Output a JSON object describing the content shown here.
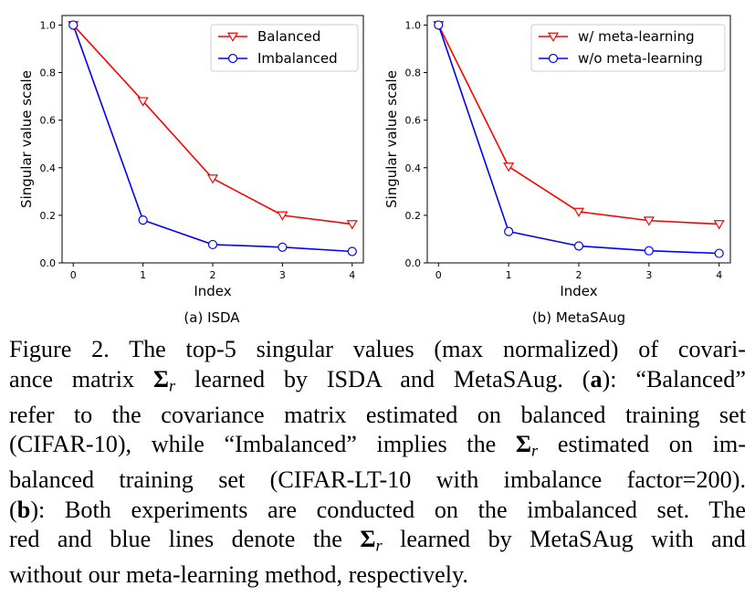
{
  "chart_data": [
    {
      "type": "line",
      "subcaption": "(a) ISDA",
      "x": [
        0,
        1,
        2,
        3,
        4
      ],
      "xlabel": "Index",
      "ylabel": "Singular value scale",
      "xticks": [
        "0",
        "1",
        "2",
        "3",
        "4"
      ],
      "yticks": [
        "0.0",
        "0.2",
        "0.4",
        "0.6",
        "0.8",
        "1.0"
      ],
      "ylim": [
        0,
        1.04
      ],
      "grid": false,
      "legend_position": "top-right",
      "series": [
        {
          "name": "Balanced",
          "color": "#ff0000",
          "marker": "triangle-down",
          "values": [
            1.0,
            0.68,
            0.355,
            0.2,
            0.163
          ]
        },
        {
          "name": "Imbalanced",
          "color": "#0000ff",
          "marker": "circle",
          "values": [
            1.0,
            0.18,
            0.077,
            0.066,
            0.048
          ]
        }
      ]
    },
    {
      "type": "line",
      "subcaption": "(b) MetaSAug",
      "x": [
        0,
        1,
        2,
        3,
        4
      ],
      "xlabel": "Index",
      "ylabel": "Singular value scale",
      "xticks": [
        "0",
        "1",
        "2",
        "3",
        "4"
      ],
      "yticks": [
        "0.0",
        "0.2",
        "0.4",
        "0.6",
        "0.8",
        "1.0"
      ],
      "ylim": [
        0,
        1.04
      ],
      "grid": false,
      "legend_position": "top-right",
      "series": [
        {
          "name": "w/ meta-learning",
          "color": "#ff0000",
          "marker": "triangle-down",
          "values": [
            1.0,
            0.405,
            0.215,
            0.178,
            0.163
          ]
        },
        {
          "name": "w/o meta-learning",
          "color": "#0000ff",
          "marker": "circle",
          "values": [
            1.0,
            0.132,
            0.071,
            0.051,
            0.04
          ]
        }
      ]
    }
  ],
  "caption": {
    "lines": [
      [
        {
          "t": "Figure 2. The top-5 singular values (max normalized) of covari-"
        }
      ],
      [
        {
          "t": "ance matrix "
        },
        {
          "t": "Σ",
          "k": "sigma"
        },
        {
          "t": "r",
          "k": "sub"
        },
        {
          "t": " learned by ISDA and MetaSAug. ("
        },
        {
          "t": "a",
          "k": "b"
        },
        {
          "t": "): “Balanced”"
        }
      ],
      [
        {
          "t": "refer to the covariance matrix estimated on balanced training set"
        }
      ],
      [
        {
          "t": "(CIFAR-10), while “Imbalanced” implies the "
        },
        {
          "t": "Σ",
          "k": "sigma"
        },
        {
          "t": "r",
          "k": "sub"
        },
        {
          "t": " estimated on im-"
        }
      ],
      [
        {
          "t": "balanced training set (CIFAR-LT-10 with imbalance factor=200)."
        }
      ],
      [
        {
          "t": "("
        },
        {
          "t": "b",
          "k": "b"
        },
        {
          "t": "): Both experiments are conducted on the imbalanced set. The"
        }
      ],
      [
        {
          "t": "red and blue lines denote the "
        },
        {
          "t": "Σ",
          "k": "sigma"
        },
        {
          "t": "r",
          "k": "sub"
        },
        {
          "t": " learned by MetaSAug with and"
        }
      ],
      [
        {
          "t": "without our meta-learning method, respectively."
        }
      ]
    ]
  }
}
